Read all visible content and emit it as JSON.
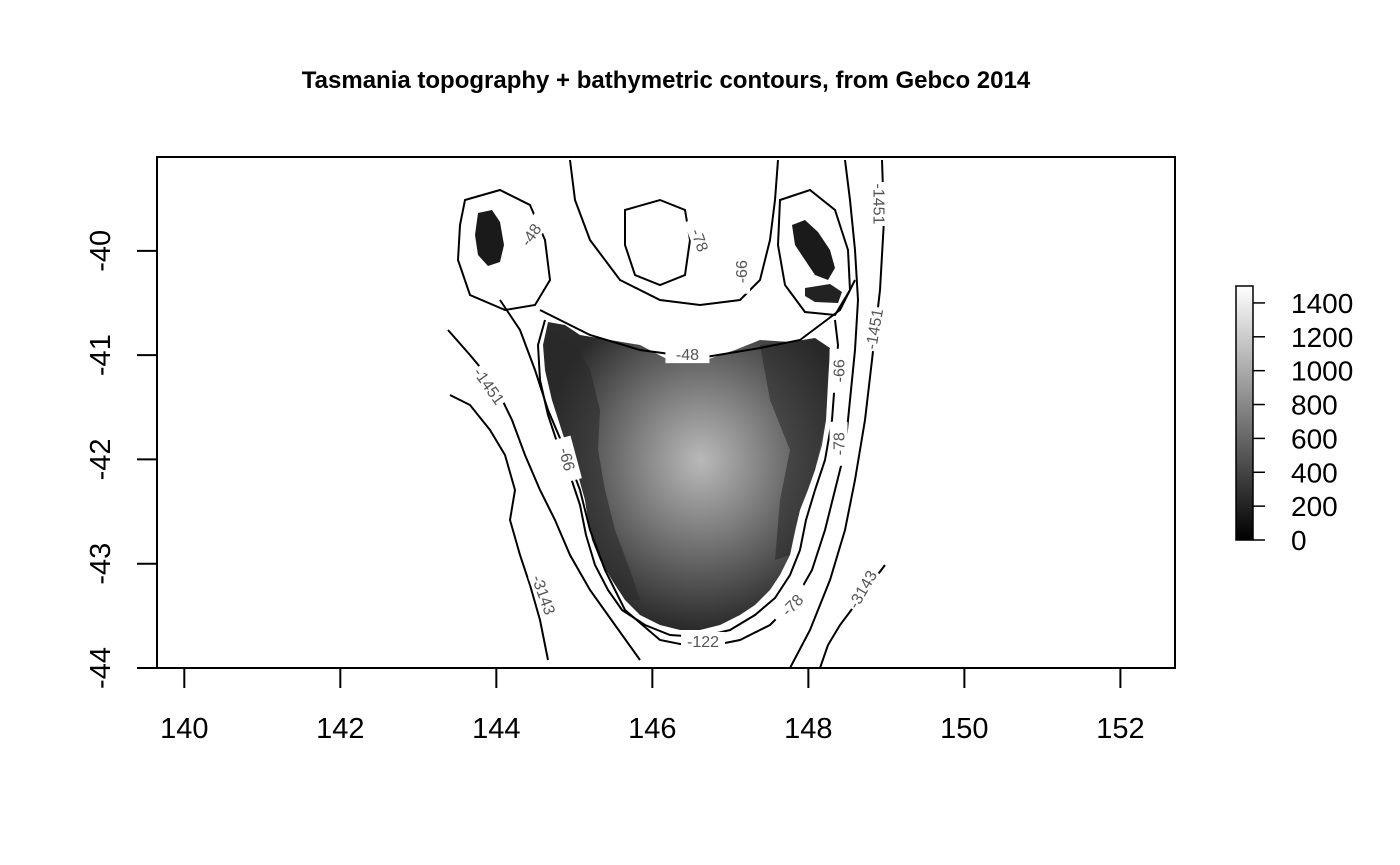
{
  "chart_data": {
    "type": "heatmap",
    "title": "Tasmania topography + bathymetric contours, from Gebco 2014",
    "xlabel": "",
    "ylabel": "",
    "xlim": [
      139.65,
      152.7
    ],
    "ylim": [
      -44,
      -39.1
    ],
    "x_ticks": [
      140,
      142,
      144,
      146,
      148,
      150,
      152
    ],
    "x_tick_labels": [
      "140",
      "142",
      "144",
      "146",
      "148",
      "150",
      "152"
    ],
    "y_ticks": [
      -40,
      -41,
      -42,
      -43,
      -44
    ],
    "y_tick_labels": [
      "-40",
      "-41",
      "-42",
      "-43",
      "-44"
    ],
    "colorscale": {
      "min": 0,
      "max": 1500,
      "low_color": "#000000",
      "high_color": "#ffffff",
      "ticks": [
        0,
        200,
        400,
        600,
        800,
        1000,
        1200,
        1400
      ],
      "tick_labels": [
        "0",
        "200",
        "400",
        "600",
        "800",
        "1000",
        "1200",
        "1400"
      ]
    },
    "contour_levels": [
      -48,
      -66,
      -78,
      -122,
      -1451,
      -3143
    ],
    "contour_labels": [
      {
        "text": "-48",
        "lon": 144.45,
        "lat": -39.85,
        "angle": -55
      },
      {
        "text": "-48",
        "lon": 146.45,
        "lat": -41.0,
        "angle": 0
      },
      {
        "text": "-78",
        "lon": 146.6,
        "lat": -39.9,
        "angle": 70
      },
      {
        "text": "-66",
        "lon": 147.15,
        "lat": -40.2,
        "angle": -90
      },
      {
        "text": "-66",
        "lon": 148.4,
        "lat": -41.15,
        "angle": -90
      },
      {
        "text": "-66",
        "lon": 144.9,
        "lat": -42.0,
        "angle": 75
      },
      {
        "text": "-78",
        "lon": 148.4,
        "lat": -41.85,
        "angle": -90
      },
      {
        "text": "-78",
        "lon": 147.8,
        "lat": -43.4,
        "angle": -45
      },
      {
        "text": "-122",
        "lon": 146.65,
        "lat": -43.75,
        "angle": 0
      },
      {
        "text": "-1451",
        "lon": 148.9,
        "lat": -39.55,
        "angle": 90
      },
      {
        "text": "-1451",
        "lon": 148.85,
        "lat": -40.75,
        "angle": -80
      },
      {
        "text": "-1451",
        "lon": 143.9,
        "lat": -41.3,
        "angle": 55
      },
      {
        "text": "-3143",
        "lon": 144.6,
        "lat": -43.3,
        "angle": 70
      },
      {
        "text": "-3143",
        "lon": 148.7,
        "lat": -43.25,
        "angle": -60
      }
    ]
  }
}
